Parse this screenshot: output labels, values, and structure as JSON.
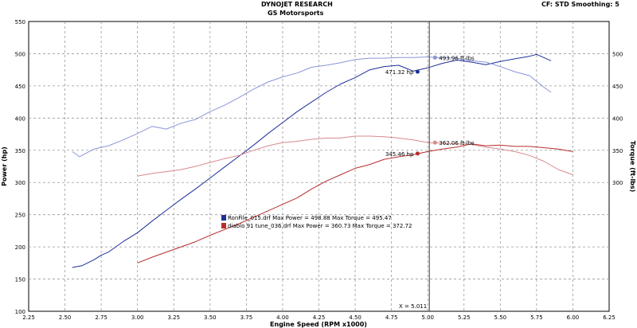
{
  "header": {
    "title": "DYNOJET RESEARCH",
    "subtitle": "GS Motorsports",
    "settings": "CF: STD  Smoothing: 5"
  },
  "chart_data": {
    "type": "line",
    "xlabel": "Engine Speed (RPM x1000)",
    "ylabel_left": "Power (hp)",
    "ylabel_right": "Torque (ft-lbs)",
    "xlim": [
      2.25,
      6.25
    ],
    "ylim": [
      100,
      550
    ],
    "x_ticks": [
      "2.25",
      "2.50",
      "2.75",
      "3.00",
      "3.25",
      "3.50",
      "3.75",
      "4.00",
      "4.25",
      "4.50",
      "4.75",
      "5.00",
      "5.25",
      "5.50",
      "5.75",
      "6.00",
      "6.25"
    ],
    "y_ticks_left": [
      "100",
      "150",
      "200",
      "250",
      "300",
      "350",
      "400",
      "450",
      "500",
      "550"
    ],
    "y_ticks_right": [
      "300",
      "350",
      "400",
      "450",
      "500"
    ],
    "grid": true,
    "colors": {
      "run1_power": "#1f2f9a",
      "run1_torque": "#8a95d8",
      "run2_power": "#b82d2d",
      "run2_torque": "#d88a8a",
      "cursor": "#555555"
    },
    "series": [
      {
        "key": "run1_power",
        "x": [
          2.55,
          2.62,
          2.7,
          2.75,
          2.8,
          2.9,
          3.0,
          3.1,
          3.2,
          3.3,
          3.4,
          3.5,
          3.6,
          3.7,
          3.8,
          3.9,
          4.0,
          4.1,
          4.2,
          4.3,
          4.4,
          4.5,
          4.6,
          4.7,
          4.8,
          4.9,
          5.0,
          5.1,
          5.2,
          5.3,
          5.4,
          5.5,
          5.6,
          5.7,
          5.75,
          5.85
        ],
        "y": [
          168,
          171,
          180,
          187,
          192,
          208,
          222,
          240,
          257,
          274,
          290,
          307,
          324,
          341,
          358,
          376,
          393,
          410,
          425,
          440,
          453,
          463,
          475,
          480,
          482,
          473,
          478,
          485,
          490,
          487,
          483,
          488,
          492,
          496,
          499,
          489
        ]
      },
      {
        "key": "run1_torque",
        "x": [
          2.55,
          2.6,
          2.7,
          2.8,
          2.9,
          3.0,
          3.1,
          3.2,
          3.3,
          3.4,
          3.5,
          3.6,
          3.7,
          3.8,
          3.9,
          4.0,
          4.1,
          4.2,
          4.3,
          4.4,
          4.5,
          4.6,
          4.7,
          4.8,
          4.9,
          5.0,
          5.05,
          5.1,
          5.2,
          5.3,
          5.4,
          5.5,
          5.6,
          5.7,
          5.8,
          5.85
        ],
        "y": [
          348,
          340,
          352,
          357,
          366,
          376,
          387,
          383,
          392,
          398,
          410,
          420,
          432,
          445,
          456,
          464,
          470,
          479,
          482,
          486,
          491,
          493,
          493,
          494,
          494,
          495,
          494,
          494,
          493,
          489,
          487,
          480,
          472,
          466,
          448,
          440
        ]
      },
      {
        "key": "run2_power",
        "x": [
          3.0,
          3.1,
          3.2,
          3.3,
          3.4,
          3.5,
          3.6,
          3.7,
          3.8,
          3.9,
          4.0,
          4.1,
          4.2,
          4.3,
          4.4,
          4.5,
          4.6,
          4.7,
          4.8,
          4.9,
          5.0,
          5.1,
          5.2,
          5.3,
          5.4,
          5.5,
          5.6,
          5.7,
          5.8,
          5.9,
          6.0
        ],
        "y": [
          175,
          184,
          192,
          200,
          208,
          218,
          227,
          236,
          246,
          256,
          266,
          276,
          290,
          302,
          312,
          322,
          328,
          336,
          340,
          343,
          348,
          352,
          355,
          360,
          357,
          358,
          356,
          356,
          354,
          352,
          348
        ]
      },
      {
        "key": "run2_torque",
        "x": [
          3.0,
          3.1,
          3.2,
          3.3,
          3.4,
          3.5,
          3.6,
          3.7,
          3.8,
          3.9,
          4.0,
          4.1,
          4.2,
          4.3,
          4.4,
          4.5,
          4.6,
          4.7,
          4.8,
          4.9,
          5.0,
          5.1,
          5.2,
          5.3,
          5.4,
          5.5,
          5.6,
          5.7,
          5.8,
          5.9,
          6.0
        ],
        "y": [
          310,
          314,
          317,
          320,
          325,
          331,
          337,
          342,
          350,
          357,
          362,
          364,
          367,
          369,
          369,
          372,
          372,
          371,
          369,
          366,
          362,
          361,
          360,
          359,
          355,
          352,
          348,
          342,
          333,
          320,
          312
        ]
      }
    ],
    "markers": [
      {
        "series": "run1_torque",
        "x": 5.05,
        "y": 494,
        "label": "493.96 ft-lbs",
        "label_side": "right"
      },
      {
        "series": "run1_power",
        "x": 4.93,
        "y": 472,
        "label": "471.32 hp",
        "label_side": "left"
      },
      {
        "series": "run2_torque",
        "x": 5.05,
        "y": 362,
        "label": "362.06 ft-lbs",
        "label_side": "right"
      },
      {
        "series": "run2_power",
        "x": 4.93,
        "y": 345,
        "label": "345.46 hp",
        "label_side": "left"
      }
    ],
    "cursor": {
      "x": 5.011,
      "label": "X = 5.011"
    },
    "legend_placement": "center-left",
    "legend": [
      {
        "text": "RonFile_015.drf Max Power = 498.88    Max Torque = 495.47",
        "color": "#1f2f9a"
      },
      {
        "text": "diablo 91 tune_036.drf Max Power = 360.73    Max Torque = 372.72",
        "color": "#b82d2d"
      }
    ]
  }
}
